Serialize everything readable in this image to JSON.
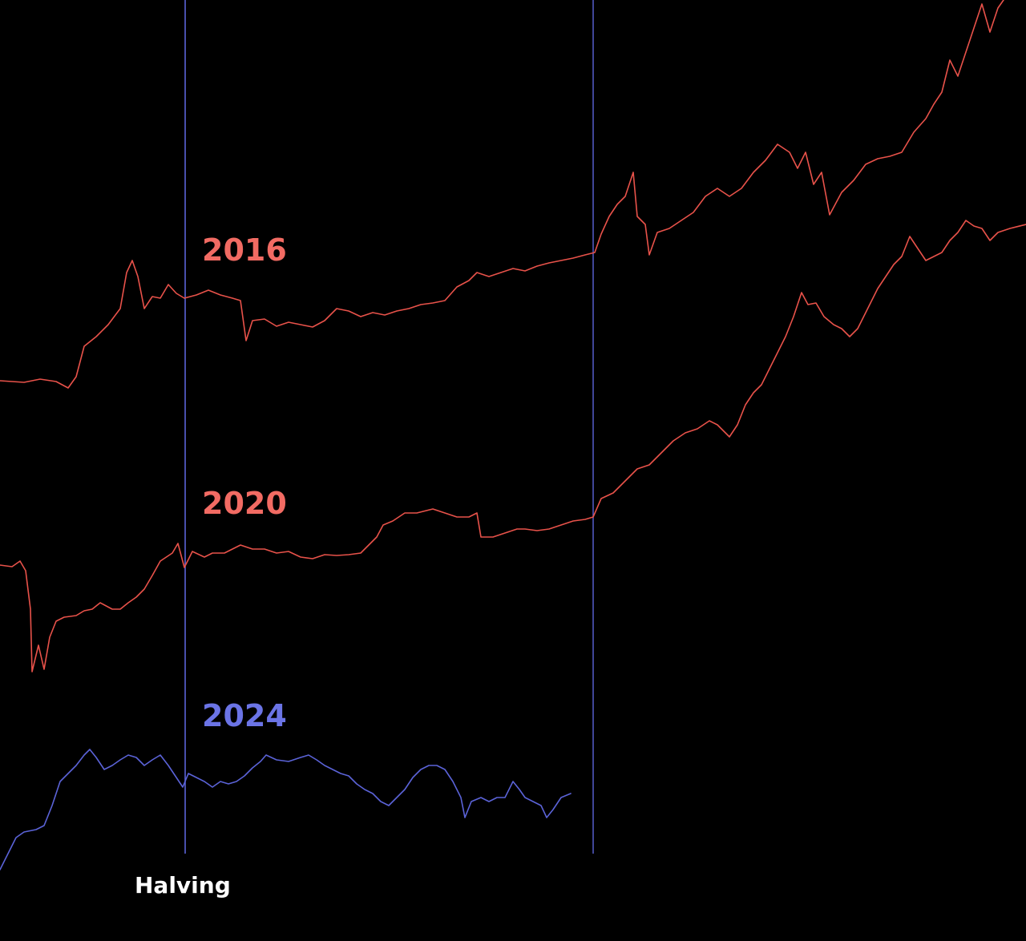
{
  "chart_data": {
    "type": "line",
    "title": "",
    "xlabel": "",
    "ylabel": "",
    "grid": false,
    "legend": "none",
    "background_color": "#000000",
    "x_marker": {
      "label": "Halving",
      "color": "#5b63d8"
    },
    "window_end_marker": {
      "color": "#5b63d8"
    },
    "series": [
      {
        "name": "2016",
        "color": "#e8524a",
        "label_color": "#f26b63",
        "points": [
          [
            0,
            475
          ],
          [
            30,
            477
          ],
          [
            50,
            473
          ],
          [
            70,
            476
          ],
          [
            85,
            484
          ],
          [
            95,
            470
          ],
          [
            105,
            432
          ],
          [
            120,
            420
          ],
          [
            135,
            405
          ],
          [
            150,
            385
          ],
          [
            158,
            340
          ],
          [
            165,
            325
          ],
          [
            172,
            345
          ],
          [
            180,
            385
          ],
          [
            190,
            370
          ],
          [
            200,
            372
          ],
          [
            210,
            355
          ],
          [
            220,
            366
          ],
          [
            230,
            372
          ],
          [
            245,
            368
          ],
          [
            260,
            362
          ],
          [
            275,
            368
          ],
          [
            290,
            372
          ],
          [
            300,
            375
          ],
          [
            307,
            425
          ],
          [
            315,
            400
          ],
          [
            330,
            398
          ],
          [
            345,
            407
          ],
          [
            360,
            402
          ],
          [
            375,
            405
          ],
          [
            390,
            408
          ],
          [
            405,
            400
          ],
          [
            420,
            385
          ],
          [
            435,
            388
          ],
          [
            450,
            395
          ],
          [
            465,
            390
          ],
          [
            480,
            393
          ],
          [
            495,
            388
          ],
          [
            510,
            385
          ],
          [
            525,
            380
          ],
          [
            540,
            378
          ],
          [
            555,
            375
          ],
          [
            570,
            358
          ],
          [
            585,
            350
          ],
          [
            595,
            340
          ],
          [
            610,
            345
          ],
          [
            625,
            340
          ],
          [
            640,
            335
          ],
          [
            655,
            338
          ],
          [
            670,
            332
          ],
          [
            685,
            328
          ],
          [
            700,
            325
          ],
          [
            715,
            322
          ],
          [
            730,
            318
          ],
          [
            742,
            315
          ],
          [
            750,
            292
          ],
          [
            760,
            270
          ],
          [
            770,
            255
          ],
          [
            780,
            245
          ],
          [
            790,
            215
          ],
          [
            795,
            270
          ],
          [
            805,
            280
          ],
          [
            810,
            318
          ],
          [
            820,
            290
          ],
          [
            835,
            285
          ],
          [
            850,
            275
          ],
          [
            865,
            265
          ],
          [
            880,
            245
          ],
          [
            895,
            235
          ],
          [
            910,
            245
          ],
          [
            925,
            235
          ],
          [
            940,
            215
          ],
          [
            955,
            200
          ],
          [
            970,
            180
          ],
          [
            985,
            190
          ],
          [
            995,
            210
          ],
          [
            1005,
            190
          ],
          [
            1015,
            230
          ],
          [
            1025,
            215
          ],
          [
            1035,
            268
          ],
          [
            1050,
            240
          ],
          [
            1065,
            225
          ],
          [
            1080,
            205
          ],
          [
            1095,
            198
          ],
          [
            1110,
            195
          ],
          [
            1125,
            190
          ],
          [
            1140,
            165
          ],
          [
            1155,
            148
          ],
          [
            1165,
            130
          ],
          [
            1175,
            115
          ],
          [
            1185,
            75
          ],
          [
            1195,
            95
          ],
          [
            1205,
            65
          ],
          [
            1215,
            35
          ],
          [
            1225,
            5
          ],
          [
            1235,
            40
          ],
          [
            1245,
            10
          ],
          [
            1252,
            0
          ]
        ]
      },
      {
        "name": "2020",
        "color": "#e8524a",
        "label_color": "#f26b63",
        "points": [
          [
            0,
            705
          ],
          [
            15,
            707
          ],
          [
            25,
            700
          ],
          [
            32,
            712
          ],
          [
            38,
            760
          ],
          [
            40,
            838
          ],
          [
            48,
            805
          ],
          [
            55,
            835
          ],
          [
            62,
            795
          ],
          [
            70,
            775
          ],
          [
            80,
            770
          ],
          [
            95,
            768
          ],
          [
            105,
            762
          ],
          [
            115,
            760
          ],
          [
            125,
            752
          ],
          [
            140,
            760
          ],
          [
            150,
            760
          ],
          [
            160,
            752
          ],
          [
            170,
            745
          ],
          [
            180,
            735
          ],
          [
            190,
            718
          ],
          [
            200,
            700
          ],
          [
            215,
            690
          ],
          [
            222,
            678
          ],
          [
            230,
            708
          ],
          [
            240,
            688
          ],
          [
            255,
            695
          ],
          [
            265,
            690
          ],
          [
            280,
            690
          ],
          [
            300,
            680
          ],
          [
            315,
            685
          ],
          [
            330,
            685
          ],
          [
            345,
            690
          ],
          [
            360,
            688
          ],
          [
            375,
            695
          ],
          [
            390,
            697
          ],
          [
            405,
            692
          ],
          [
            420,
            693
          ],
          [
            435,
            692
          ],
          [
            450,
            690
          ],
          [
            460,
            680
          ],
          [
            470,
            670
          ],
          [
            478,
            655
          ],
          [
            490,
            650
          ],
          [
            505,
            640
          ],
          [
            520,
            640
          ],
          [
            540,
            635
          ],
          [
            555,
            640
          ],
          [
            570,
            645
          ],
          [
            585,
            645
          ],
          [
            595,
            640
          ],
          [
            600,
            670
          ],
          [
            615,
            670
          ],
          [
            630,
            665
          ],
          [
            645,
            660
          ],
          [
            655,
            660
          ],
          [
            670,
            662
          ],
          [
            685,
            660
          ],
          [
            700,
            655
          ],
          [
            715,
            650
          ],
          [
            730,
            648
          ],
          [
            740,
            645
          ],
          [
            750,
            622
          ],
          [
            765,
            615
          ],
          [
            780,
            600
          ],
          [
            795,
            585
          ],
          [
            810,
            580
          ],
          [
            825,
            565
          ],
          [
            840,
            550
          ],
          [
            855,
            540
          ],
          [
            870,
            535
          ],
          [
            885,
            525
          ],
          [
            895,
            530
          ],
          [
            910,
            545
          ],
          [
            920,
            530
          ],
          [
            930,
            505
          ],
          [
            940,
            490
          ],
          [
            950,
            480
          ],
          [
            960,
            460
          ],
          [
            970,
            440
          ],
          [
            980,
            420
          ],
          [
            990,
            395
          ],
          [
            1000,
            365
          ],
          [
            1008,
            380
          ],
          [
            1018,
            378
          ],
          [
            1028,
            395
          ],
          [
            1040,
            405
          ],
          [
            1050,
            410
          ],
          [
            1060,
            420
          ],
          [
            1070,
            410
          ],
          [
            1085,
            380
          ],
          [
            1095,
            360
          ],
          [
            1105,
            345
          ],
          [
            1115,
            330
          ],
          [
            1125,
            320
          ],
          [
            1135,
            295
          ],
          [
            1145,
            310
          ],
          [
            1155,
            325
          ],
          [
            1165,
            320
          ],
          [
            1175,
            315
          ],
          [
            1185,
            300
          ],
          [
            1195,
            290
          ],
          [
            1205,
            275
          ],
          [
            1215,
            282
          ],
          [
            1225,
            285
          ],
          [
            1235,
            300
          ],
          [
            1245,
            290
          ],
          [
            1260,
            285
          ],
          [
            1280,
            280
          ]
        ]
      },
      {
        "name": "2024",
        "color": "#5b63d8",
        "label_color": "#6b74e6",
        "points": [
          [
            0,
            1085
          ],
          [
            10,
            1065
          ],
          [
            20,
            1045
          ],
          [
            30,
            1038
          ],
          [
            45,
            1035
          ],
          [
            55,
            1030
          ],
          [
            65,
            1005
          ],
          [
            75,
            975
          ],
          [
            85,
            965
          ],
          [
            95,
            955
          ],
          [
            105,
            942
          ],
          [
            112,
            935
          ],
          [
            120,
            945
          ],
          [
            130,
            960
          ],
          [
            140,
            955
          ],
          [
            150,
            948
          ],
          [
            160,
            942
          ],
          [
            170,
            945
          ],
          [
            180,
            955
          ],
          [
            190,
            948
          ],
          [
            200,
            942
          ],
          [
            210,
            955
          ],
          [
            220,
            970
          ],
          [
            228,
            982
          ],
          [
            235,
            965
          ],
          [
            245,
            970
          ],
          [
            255,
            975
          ],
          [
            265,
            982
          ],
          [
            275,
            975
          ],
          [
            285,
            978
          ],
          [
            295,
            975
          ],
          [
            305,
            968
          ],
          [
            315,
            958
          ],
          [
            325,
            950
          ],
          [
            332,
            942
          ],
          [
            345,
            948
          ],
          [
            360,
            950
          ],
          [
            375,
            945
          ],
          [
            385,
            942
          ],
          [
            395,
            948
          ],
          [
            405,
            955
          ],
          [
            415,
            960
          ],
          [
            425,
            965
          ],
          [
            435,
            968
          ],
          [
            445,
            978
          ],
          [
            455,
            985
          ],
          [
            465,
            990
          ],
          [
            475,
            1000
          ],
          [
            485,
            1005
          ],
          [
            495,
            995
          ],
          [
            505,
            985
          ],
          [
            515,
            970
          ],
          [
            525,
            960
          ],
          [
            535,
            955
          ],
          [
            545,
            955
          ],
          [
            555,
            960
          ],
          [
            565,
            975
          ],
          [
            575,
            995
          ],
          [
            580,
            1020
          ],
          [
            588,
            1000
          ],
          [
            600,
            995
          ],
          [
            610,
            1000
          ],
          [
            620,
            995
          ],
          [
            630,
            995
          ],
          [
            640,
            975
          ],
          [
            648,
            985
          ],
          [
            655,
            995
          ],
          [
            665,
            1000
          ],
          [
            675,
            1005
          ],
          [
            682,
            1020
          ],
          [
            690,
            1010
          ],
          [
            700,
            995
          ],
          [
            712,
            990
          ]
        ]
      }
    ]
  },
  "labels": {
    "series_2016": "2016",
    "series_2020": "2020",
    "series_2024": "2024",
    "halving": "Halving"
  }
}
